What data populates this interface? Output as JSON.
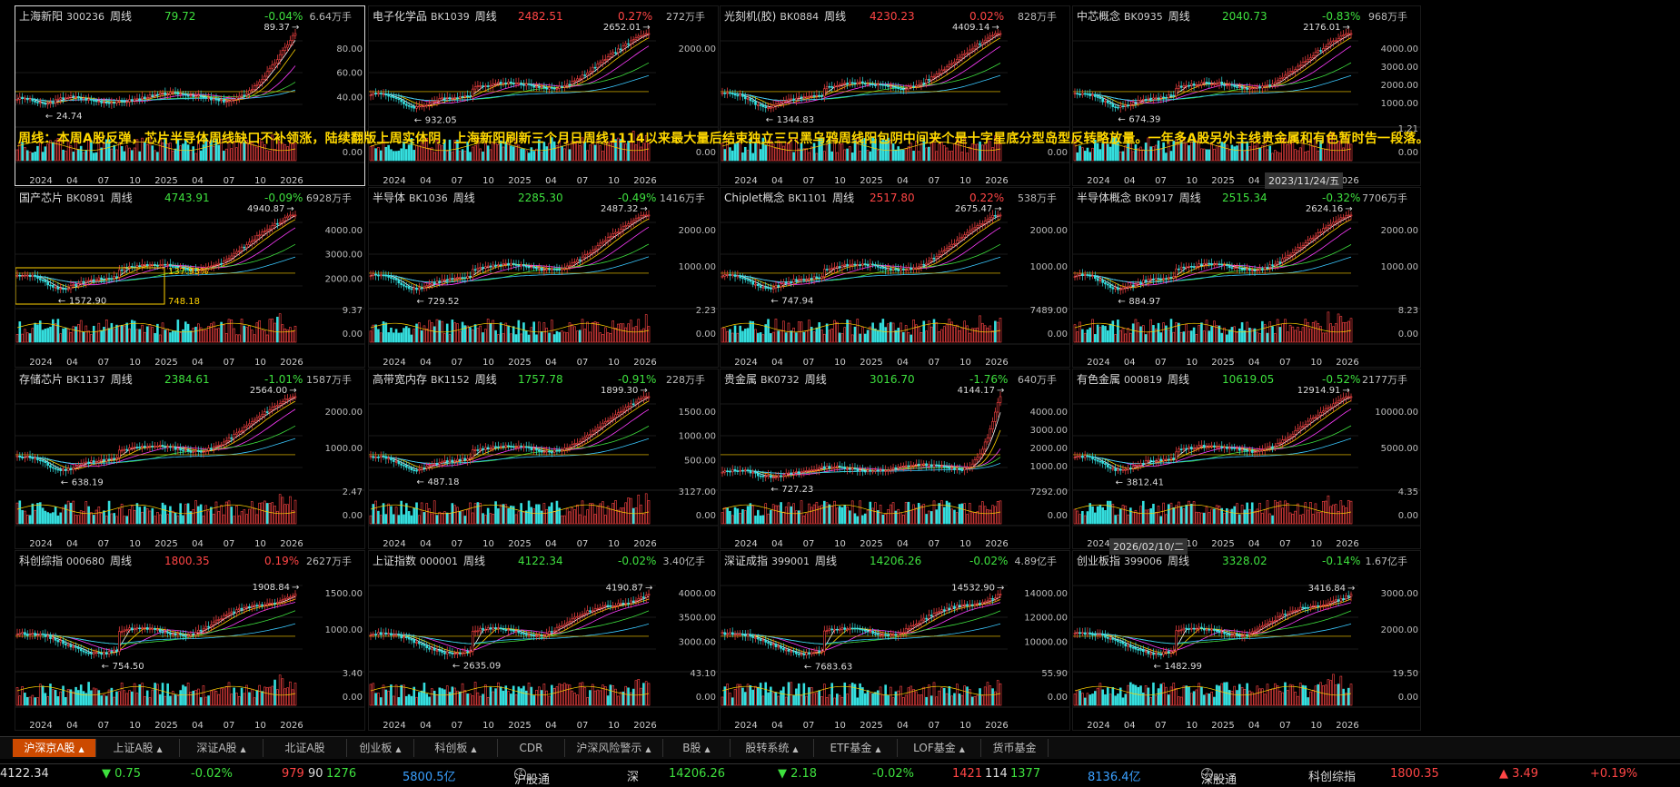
{
  "note": "周线：本周A股反弹，芯片半导体周线缺口不补领涨，陆续翻版上周实体阴，上海新阳刷新三个月日周线1114以来最大量后结束独立三只黑乌鸦周线阳包阴中间夹个是十字星底分型岛型反转略放量。一年多A股另外主线贵金属和有色暂时告一段落。",
  "date_tips": [
    "2023/11/24/五",
    "2026/02/10/二"
  ],
  "colors": {
    "up": "#ff4545",
    "down": "#3ee03e",
    "accent": "#cc4a00",
    "note": "#ffd800"
  },
  "xaxis": [
    "2024",
    "04",
    "07",
    "10",
    "2025",
    "04",
    "07",
    "10",
    "2026"
  ],
  "panels": [
    {
      "name": "上海新阳",
      "code": "300236",
      "period": "周线",
      "price": "79.72",
      "change": "-0.04%",
      "dir": "dn",
      "vol": "6.64万手",
      "high": "89.37",
      "low": "24.74",
      "yticks": [
        "80.00",
        "60.00",
        "40.00"
      ],
      "vticks": [
        "",
        "0.00"
      ],
      "selected": true,
      "shape": 1
    },
    {
      "name": "电子化学品",
      "code": "BK1039",
      "period": "周线",
      "price": "2482.51",
      "change": "0.27%",
      "dir": "up",
      "vol": "272万手",
      "high": "2652.01",
      "low": "932.05",
      "yticks": [
        "2000.00"
      ],
      "vticks": [
        "",
        "0.00"
      ],
      "shape": 2
    },
    {
      "name": "光刻机(胶)",
      "code": "BK0884",
      "period": "周线",
      "price": "4230.23",
      "change": "0.02%",
      "dir": "up",
      "vol": "828万手",
      "high": "4409.14",
      "low": "1344.83",
      "yticks": [
        "",
        "",
        ""
      ],
      "vticks": [
        "",
        "0.00"
      ],
      "shape": 2
    },
    {
      "name": "中芯概念",
      "code": "BK0935",
      "period": "周线",
      "price": "2040.73",
      "change": "-0.83%",
      "dir": "dn",
      "vol": "968万手",
      "high": "2176.01",
      "low": "674.39",
      "yticks": [
        "4000.00",
        "3000.00",
        "2000.00",
        "1000.00"
      ],
      "vticks": [
        "1.21",
        "0.00"
      ],
      "shape": 2
    },
    {
      "name": "国产芯片",
      "code": "BK0891",
      "period": "周线",
      "price": "4743.91",
      "change": "-0.09%",
      "dir": "dn",
      "vol": "6928万手",
      "high": "4940.87",
      "low": "1572.90",
      "yticks": [
        "4000.00",
        "3000.00",
        "2000.00"
      ],
      "vticks": [
        "9.37",
        "0.00"
      ],
      "box": {
        "pct": "137.93%",
        "val": "748.18"
      },
      "shape": 2
    },
    {
      "name": "半导体",
      "code": "BK1036",
      "period": "周线",
      "price": "2285.30",
      "change": "-0.49%",
      "dir": "dn",
      "vol": "1416万手",
      "high": "2487.32",
      "low": "729.52",
      "yticks": [
        "2000.00",
        "1000.00"
      ],
      "vticks": [
        "2.23",
        "0.00"
      ],
      "shape": 2
    },
    {
      "name": "Chiplet概念",
      "code": "BK1101",
      "period": "周线",
      "price": "2517.80",
      "change": "0.22%",
      "dir": "up",
      "vol": "538万手",
      "high": "2675.47",
      "low": "747.94",
      "yticks": [
        "2000.00",
        "1000.00"
      ],
      "vticks": [
        "7489.00",
        "0.00"
      ],
      "shape": 2
    },
    {
      "name": "半导体概念",
      "code": "BK0917",
      "period": "周线",
      "price": "2515.34",
      "change": "-0.32%",
      "dir": "dn",
      "vol": "7706万手",
      "high": "2624.16",
      "low": "884.97",
      "yticks": [
        "2000.00",
        "1000.00"
      ],
      "vticks": [
        "8.23",
        "0.00"
      ],
      "shape": 2
    },
    {
      "name": "存储芯片",
      "code": "BK1137",
      "period": "周线",
      "price": "2384.61",
      "change": "-1.01%",
      "dir": "dn",
      "vol": "1587万手",
      "high": "2564.00",
      "low": "638.19",
      "yticks": [
        "2000.00",
        "1000.00"
      ],
      "vticks": [
        "2.47",
        "0.00"
      ],
      "shape": 2
    },
    {
      "name": "高带宽内存",
      "code": "BK1152",
      "period": "周线",
      "price": "1757.78",
      "change": "-0.91%",
      "dir": "dn",
      "vol": "228万手",
      "high": "1899.30",
      "low": "487.18",
      "yticks": [
        "1500.00",
        "1000.00",
        "500.00"
      ],
      "vticks": [
        "3127.00",
        "0.00"
      ],
      "shape": 2
    },
    {
      "name": "贵金属",
      "code": "BK0732",
      "period": "周线",
      "price": "3016.70",
      "change": "-1.76%",
      "dir": "dn",
      "vol": "640万手",
      "high": "4144.17",
      "low": "727.23",
      "yticks": [
        "4000.00",
        "3000.00",
        "2000.00",
        "1000.00"
      ],
      "vticks": [
        "7292.00",
        "0.00"
      ],
      "shape": 3
    },
    {
      "name": "有色金属",
      "code": "000819",
      "period": "周线",
      "price": "10619.05",
      "change": "-0.52%",
      "dir": "dn",
      "vol": "2177万手",
      "high": "12914.91",
      "low": "3812.41",
      "yticks": [
        "10000.00",
        "5000.00"
      ],
      "vticks": [
        "4.35",
        "0.00"
      ],
      "shape": 2
    },
    {
      "name": "科创综指",
      "code": "000680",
      "period": "周线",
      "price": "1800.35",
      "change": "0.19%",
      "dir": "up",
      "vol": "2627万手",
      "high": "1908.84",
      "low": "754.50",
      "yticks": [
        "1500.00",
        "1000.00"
      ],
      "vticks": [
        "3.40",
        "0.00"
      ],
      "shape": 4
    },
    {
      "name": "上证指数",
      "code": "000001",
      "period": "周线",
      "price": "4122.34",
      "change": "-0.02%",
      "dir": "dn",
      "vol": "3.40亿手",
      "high": "4190.87",
      "low": "2635.09",
      "yticks": [
        "4000.00",
        "3500.00",
        "3000.00"
      ],
      "vticks": [
        "43.10",
        "0.00"
      ],
      "shape": 4
    },
    {
      "name": "深证成指",
      "code": "399001",
      "period": "周线",
      "price": "14206.26",
      "change": "-0.02%",
      "dir": "dn",
      "vol": "4.89亿手",
      "high": "14532.90",
      "low": "7683.63",
      "yticks": [
        "14000.00",
        "12000.00",
        "10000.00"
      ],
      "vticks": [
        "55.90",
        "0.00"
      ],
      "shape": 4
    },
    {
      "name": "创业板指",
      "code": "399006",
      "period": "周线",
      "price": "3328.02",
      "change": "-0.14%",
      "dir": "dn",
      "vol": "1.67亿手",
      "high": "3416.84",
      "low": "1482.99",
      "yticks": [
        "3000.00",
        "2000.00"
      ],
      "vticks": [
        "19.50",
        "0.00"
      ],
      "shape": 4
    }
  ],
  "tabs": [
    {
      "label": "沪深京A股",
      "caret": true,
      "active": true
    },
    {
      "label": "上证A股",
      "caret": true
    },
    {
      "label": "深证A股",
      "caret": true
    },
    {
      "label": "北证A股",
      "caret": false
    },
    {
      "label": "创业板",
      "caret": true
    },
    {
      "label": "科创板",
      "caret": true
    },
    {
      "label": "CDR",
      "caret": false
    },
    {
      "label": "沪深风险警示",
      "caret": true
    },
    {
      "label": "B股",
      "caret": true
    },
    {
      "label": "股转系统",
      "caret": true
    },
    {
      "label": "ETF基金",
      "caret": true
    },
    {
      "label": "LOF基金",
      "caret": true
    },
    {
      "label": "货币基金",
      "caret": false
    }
  ],
  "status": {
    "sh_index": "4122.34",
    "sh_chg": "▼ 0.75",
    "sh_pct": "-0.02%",
    "sh_up": "979",
    "sh_flat": "90",
    "sh_dn": "1276",
    "sh_amt": "5800.5亿",
    "sh_connect": "沪股通",
    "sz_label": "深",
    "sz_index": "14206.26",
    "sz_chg": "▼ 2.18",
    "sz_pct": "-0.02%",
    "sz_up": "1421",
    "sz_flat": "114",
    "sz_dn": "1377",
    "sz_amt": "8136.4亿",
    "sz_connect": "深股通",
    "kc_label": "科创综指",
    "kc_index": "1800.35",
    "kc_chg": "▲ 3.49",
    "kc_pct": "+0.19%",
    "dash": "一"
  }
}
